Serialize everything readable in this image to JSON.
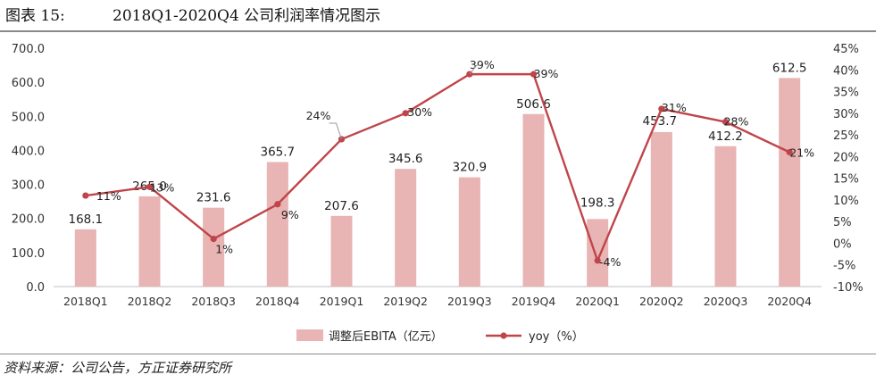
{
  "figure": {
    "label": "图表 15:",
    "title": "2018Q1-2020Q4 公司利润率情况图示",
    "source": "资料来源：公司公告，方正证券研究所"
  },
  "chart_data": {
    "type": "bar",
    "categories": [
      "2018Q1",
      "2018Q2",
      "2018Q3",
      "2018Q4",
      "2019Q1",
      "2019Q2",
      "2019Q3",
      "2019Q4",
      "2020Q1",
      "2020Q2",
      "2020Q3",
      "2020Q4"
    ],
    "series": [
      {
        "name": "调整后EBITA（亿元）",
        "type": "bar",
        "axis": "left",
        "values": [
          168.1,
          265.0,
          231.6,
          365.7,
          207.6,
          345.6,
          320.9,
          506.6,
          198.3,
          453.7,
          412.2,
          612.5
        ],
        "labels": [
          "168.1",
          "265.0",
          "231.6",
          "365.7",
          "207.6",
          "345.6",
          "320.9",
          "506.6",
          "198.3",
          "453.7",
          "412.2",
          "612.5"
        ]
      },
      {
        "name": "yoy（%）",
        "type": "line",
        "axis": "right",
        "values": [
          11,
          13,
          1,
          9,
          24,
          30,
          39,
          39,
          -4,
          31,
          28,
          21
        ],
        "labels": [
          "11%",
          "13%",
          "1%",
          "9%",
          "24%",
          "30%",
          "39%",
          "39%",
          "-4%",
          "31%",
          "28%",
          "21%"
        ]
      }
    ],
    "y_left": {
      "min": 0,
      "max": 700,
      "step": 100,
      "ticks": [
        "0.0",
        "100.0",
        "200.0",
        "300.0",
        "400.0",
        "500.0",
        "600.0",
        "700.0"
      ]
    },
    "y_right": {
      "min": -10,
      "max": 45,
      "step": 5,
      "ticks": [
        "-10%",
        "-5%",
        "0%",
        "5%",
        "10%",
        "15%",
        "20%",
        "25%",
        "30%",
        "35%",
        "40%",
        "45%"
      ]
    },
    "grid": false,
    "legend_position": "bottom",
    "colors": {
      "bar": "#e8b4b4",
      "line": "#c0454a",
      "axis": "#bfbfbf",
      "leader": "#999999"
    }
  }
}
